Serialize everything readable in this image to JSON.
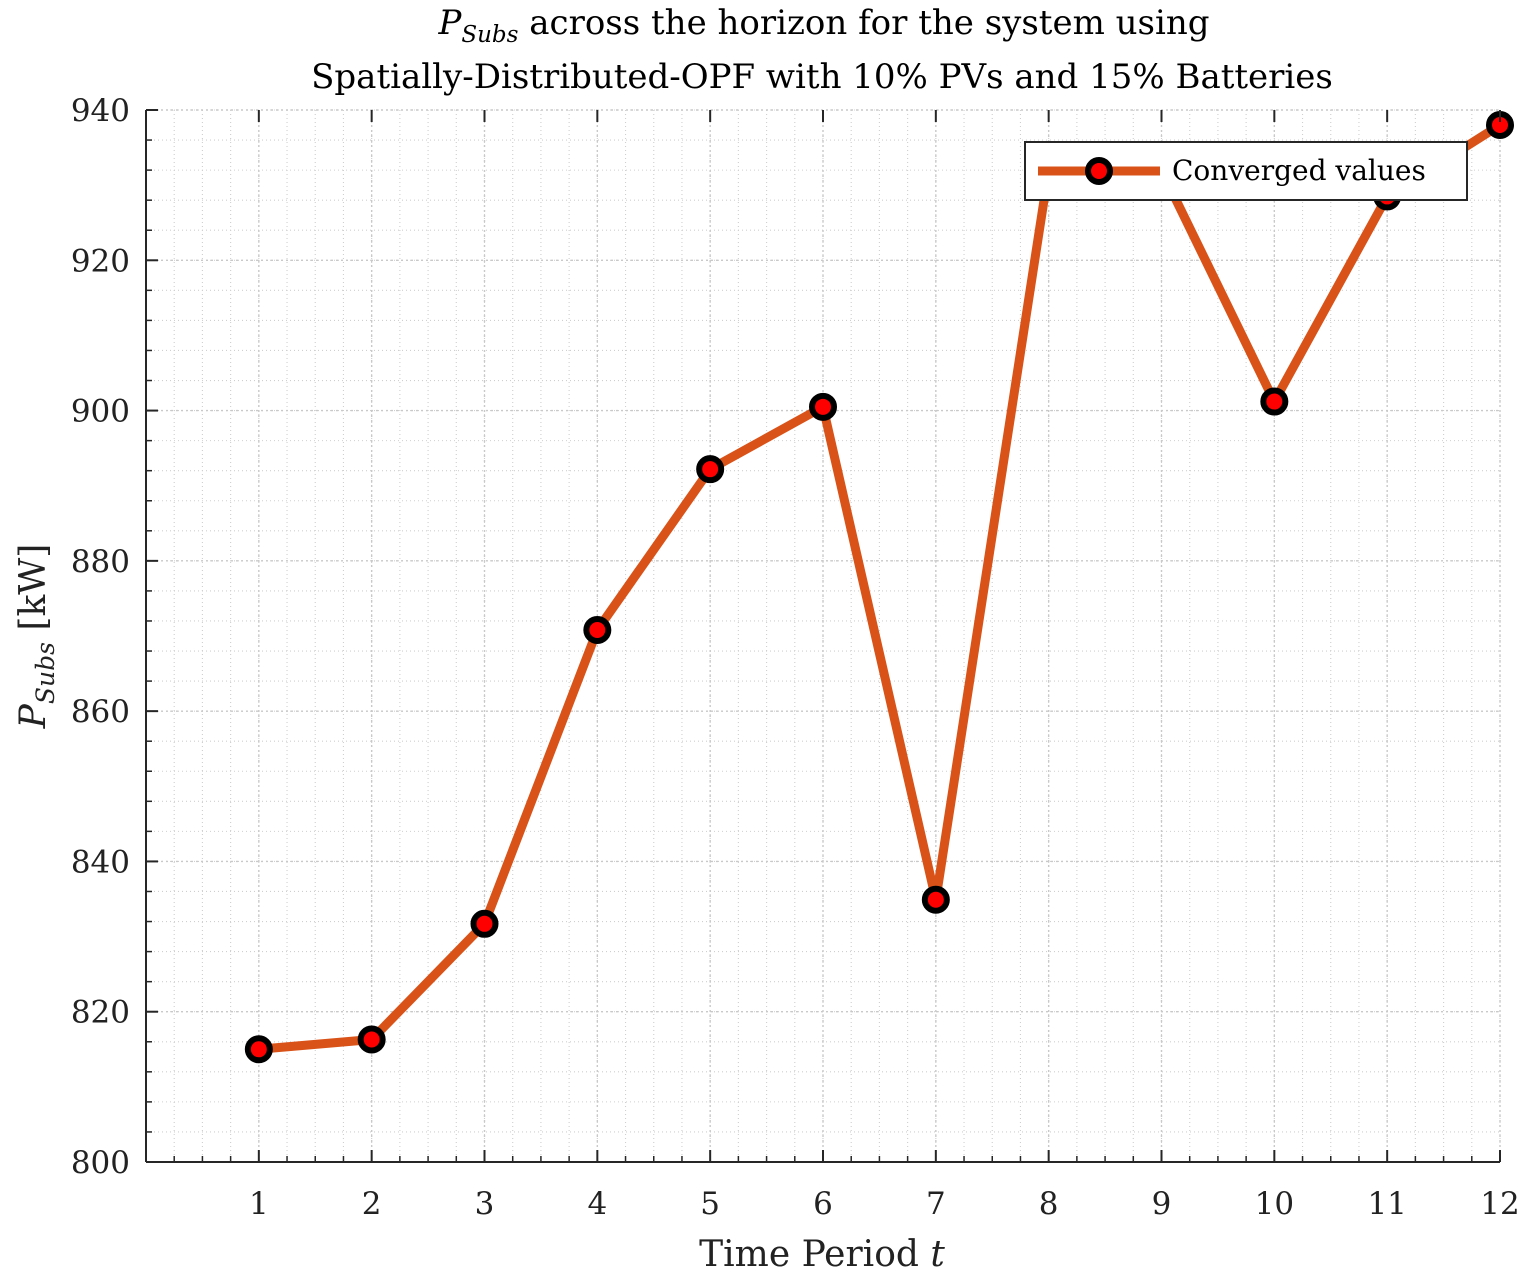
{
  "chart_data": {
    "type": "line",
    "title": {
      "line1_symbol": "P",
      "line1_subscript": "Subs",
      "line1_rest": " across the horizon for the system using",
      "line2": "Spatially-Distributed-OPF with 10% PVs and 15% Batteries"
    },
    "xlabel": {
      "text": "Time Period ",
      "var": "t"
    },
    "ylabel": {
      "symbol": "P",
      "subscript": "Subs",
      "unit": " [kW]"
    },
    "x": [
      1,
      2,
      3,
      4,
      5,
      6,
      7,
      8,
      9,
      10,
      11,
      12
    ],
    "xticks": [
      "1",
      "2",
      "3",
      "4",
      "5",
      "6",
      "7",
      "8",
      "9",
      "10",
      "11",
      "12"
    ],
    "xlim": [
      0,
      12
    ],
    "ylim": [
      800,
      940
    ],
    "yticks": [
      "800",
      "820",
      "840",
      "860",
      "880",
      "900",
      "920",
      "940"
    ],
    "ytick_values": [
      800,
      820,
      840,
      860,
      880,
      900,
      920,
      940
    ],
    "grid": true,
    "minor_grid": true,
    "legend": {
      "placement": "top-right"
    },
    "series": [
      {
        "name": "Converged values",
        "values": [
          815.0,
          816.3,
          831.7,
          870.8,
          892.2,
          900.5,
          834.9,
          932.0,
          932.0,
          901.2,
          928.5,
          938.0
        ],
        "line_color": "#d95319",
        "marker_face_color": "#ff0000",
        "marker_edge_color": "#000000"
      }
    ]
  }
}
